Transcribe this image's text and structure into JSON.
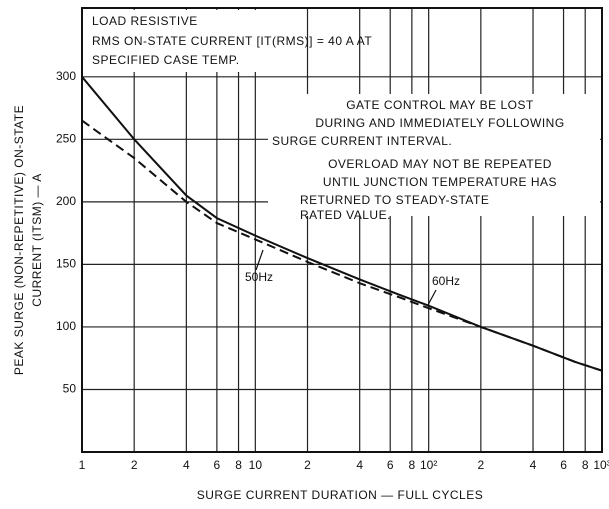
{
  "chart_data": {
    "type": "line",
    "annotations": [
      "LOAD RESISTIVE",
      "RMS ON-STATE CURRENT [IT(RMS)] = 40 A AT",
      "SPECIFIED CASE TEMP.",
      "GATE CONTROL MAY BE LOST",
      "DURING AND IMMEDIATELY FOLLOWING",
      "SURGE CURRENT INTERVAL.",
      "OVERLOAD MAY NOT BE REPEATED",
      "UNTIL JUNCTION TEMPERATURE HAS",
      "RETURNED TO STEADY-STATE",
      "RATED VALUE."
    ],
    "x_label": "SURGE CURRENT DURATION — FULL CYCLES",
    "y_label": [
      "PEAK SURGE (NON-REPETITIVE) ON-STATE",
      "CURRENT (ITSM) — A"
    ],
    "x": [
      1,
      2,
      4,
      6,
      10,
      20,
      40,
      70,
      100,
      200,
      400,
      700,
      1000
    ],
    "series": [
      {
        "name": "50Hz",
        "color": "#111",
        "dash": true,
        "values": [
          265,
          235,
          200,
          183,
          170,
          152,
          135,
          123,
          115,
          100,
          85,
          72,
          65
        ]
      },
      {
        "name": "60Hz",
        "color": "#111",
        "dash": false,
        "values": [
          300,
          250,
          205,
          187,
          173,
          155,
          138,
          125,
          117,
          100,
          85,
          72,
          65
        ]
      }
    ],
    "log_x": true,
    "xlim": [
      1,
      1000
    ],
    "ylim": [
      0,
      355
    ],
    "xticks": [
      1,
      2,
      4,
      6,
      8,
      10,
      {
        "value": 20,
        "label": "2"
      },
      {
        "value": 40,
        "label": "4"
      },
      {
        "value": 60,
        "label": "6"
      },
      {
        "value": 80,
        "label": "8"
      },
      {
        "value": 100,
        "label": "10²"
      },
      {
        "value": 200,
        "label": "2"
      },
      {
        "value": 400,
        "label": "4"
      },
      {
        "value": 600,
        "label": "6"
      },
      {
        "value": 800,
        "label": "8"
      },
      {
        "value": 1000,
        "label": "10³"
      }
    ],
    "yticks": [
      50,
      100,
      150,
      200,
      250,
      300
    ],
    "grid": true
  }
}
